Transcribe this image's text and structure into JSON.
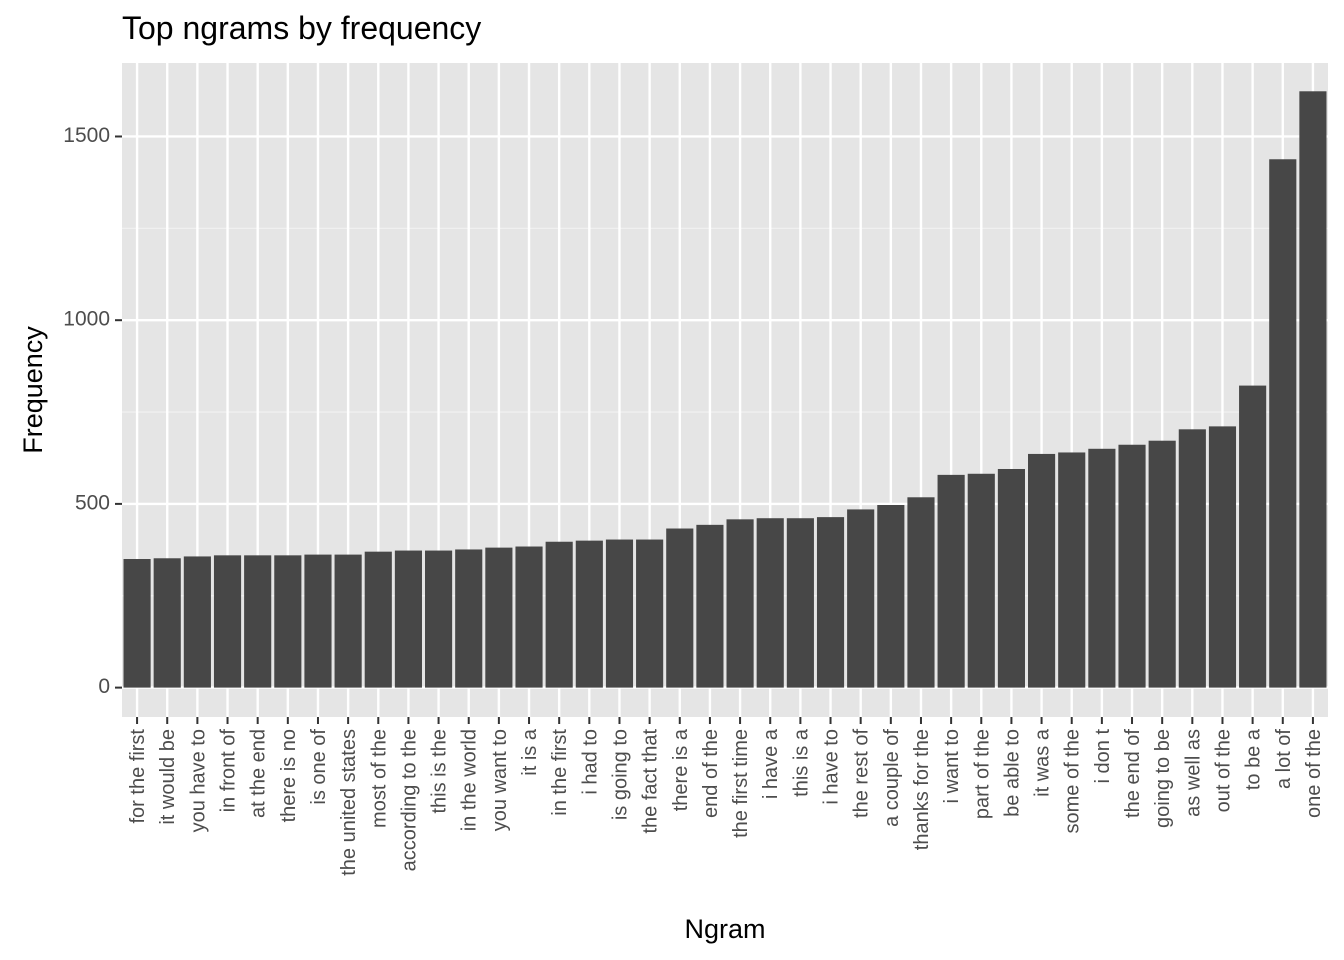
{
  "chart_data": {
    "type": "bar",
    "title": "Top ngrams by frequency",
    "xlabel": "Ngram",
    "ylabel": "Frequency",
    "ylim": [
      -80,
      1700
    ],
    "yticks": [
      0,
      500,
      1000,
      1500
    ],
    "grid": true,
    "legend": "none",
    "bar_color": "#474747",
    "panel_color": "#e5e5e5",
    "categories": [
      "for the first",
      "it would be",
      "you have to",
      "in front of",
      "at the end",
      "there is no",
      "is one of",
      "the united states",
      "most of the",
      "according to the",
      "this is the",
      "in the world",
      "you want to",
      "it is a",
      "in the first",
      "i had to",
      "is going to",
      "the fact that",
      "there is a",
      "end of the",
      "the first time",
      "i have a",
      "this is a",
      "i have to",
      "the rest of",
      "a couple of",
      "thanks for the",
      "i want to",
      "part of the",
      "be able to",
      "it was a",
      "some of the",
      "i don t",
      "the end of",
      "going to be",
      "as well as",
      "out of the",
      "to be a",
      "a lot of",
      "one of the"
    ],
    "values": [
      350,
      352,
      357,
      360,
      360,
      360,
      362,
      362,
      370,
      373,
      373,
      376,
      381,
      384,
      397,
      400,
      403,
      403,
      433,
      443,
      458,
      461,
      461,
      464,
      485,
      497,
      518,
      579,
      582,
      595,
      636,
      640,
      650,
      661,
      672,
      703,
      711,
      822,
      1438,
      1623
    ]
  }
}
